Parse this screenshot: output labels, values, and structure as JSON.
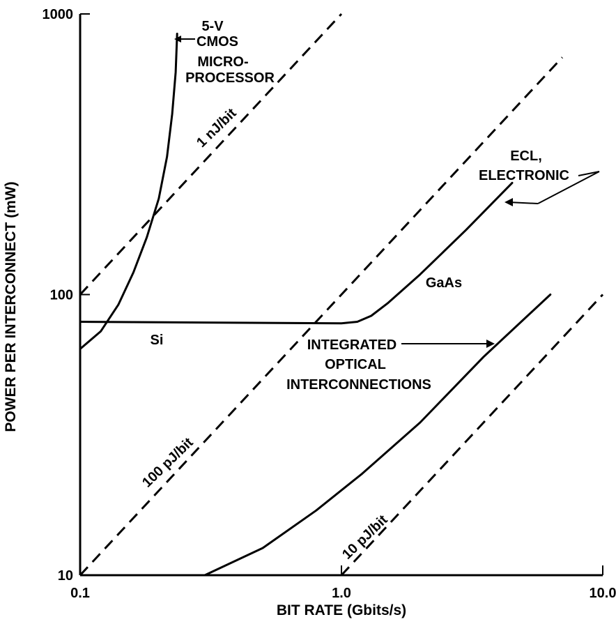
{
  "chart_data": {
    "type": "line",
    "x_scale": "log",
    "y_scale": "log",
    "xlim": [
      0.1,
      10.0
    ],
    "ylim": [
      10,
      1000
    ],
    "xlabel": "BIT RATE (Gbits/s)",
    "ylabel": "POWER PER INTERCONNECT (mW)",
    "x_ticks": [
      "0.1",
      "1.0",
      "10.0"
    ],
    "y_ticks": [
      "10",
      "100",
      "1000"
    ],
    "grid": false,
    "series": [
      {
        "name": "5-V CMOS MICRO-PROCESSOR",
        "style": "solid",
        "points": [
          [
            0.1,
            64
          ],
          [
            0.12,
            74
          ],
          [
            0.14,
            92
          ],
          [
            0.16,
            120
          ],
          [
            0.18,
            160
          ],
          [
            0.2,
            220
          ],
          [
            0.215,
            310
          ],
          [
            0.225,
            440
          ],
          [
            0.232,
            620
          ],
          [
            0.235,
            850
          ]
        ]
      },
      {
        "name": "ECL, ELECTRONIC",
        "style": "solid",
        "points": [
          [
            0.1,
            80
          ],
          [
            0.3,
            79.5
          ],
          [
            1.0,
            79
          ],
          [
            1.15,
            80
          ],
          [
            1.3,
            84
          ],
          [
            1.5,
            93
          ],
          [
            2.0,
            118
          ],
          [
            3.0,
            170
          ],
          [
            4.5,
            250
          ]
        ]
      },
      {
        "name": "INTEGRATED OPTICAL INTERCONNECTIONS",
        "style": "solid",
        "points": [
          [
            0.3,
            10
          ],
          [
            0.5,
            12.5
          ],
          [
            0.8,
            17
          ],
          [
            1.2,
            23
          ],
          [
            2.0,
            35
          ],
          [
            3.5,
            60
          ],
          [
            6.3,
            100
          ]
        ]
      },
      {
        "name": "1 nJ/bit",
        "style": "dashed",
        "points": [
          [
            0.1,
            100
          ],
          [
            1.0,
            1000
          ]
        ]
      },
      {
        "name": "100 pJ/bit",
        "style": "dashed",
        "points": [
          [
            0.1,
            10
          ],
          [
            7.0,
            700
          ]
        ]
      },
      {
        "name": "10 pJ/bit",
        "style": "dashed",
        "points": [
          [
            1.0,
            10
          ],
          [
            10.0,
            100
          ]
        ]
      }
    ],
    "annotations": {
      "cmos": [
        "5-V",
        "CMOS",
        "MICRO-",
        "PROCESSOR"
      ],
      "ecl": [
        "ECL,",
        "ELECTRONIC"
      ],
      "optical": [
        "INTEGRATED",
        "OPTICAL",
        "INTERCONNECTIONS"
      ],
      "si": "Si",
      "gaas": "GaAs",
      "nj1": "1 nJ/bit",
      "pj100": "100 pJ/bit",
      "pj10": "10 pJ/bit"
    }
  }
}
